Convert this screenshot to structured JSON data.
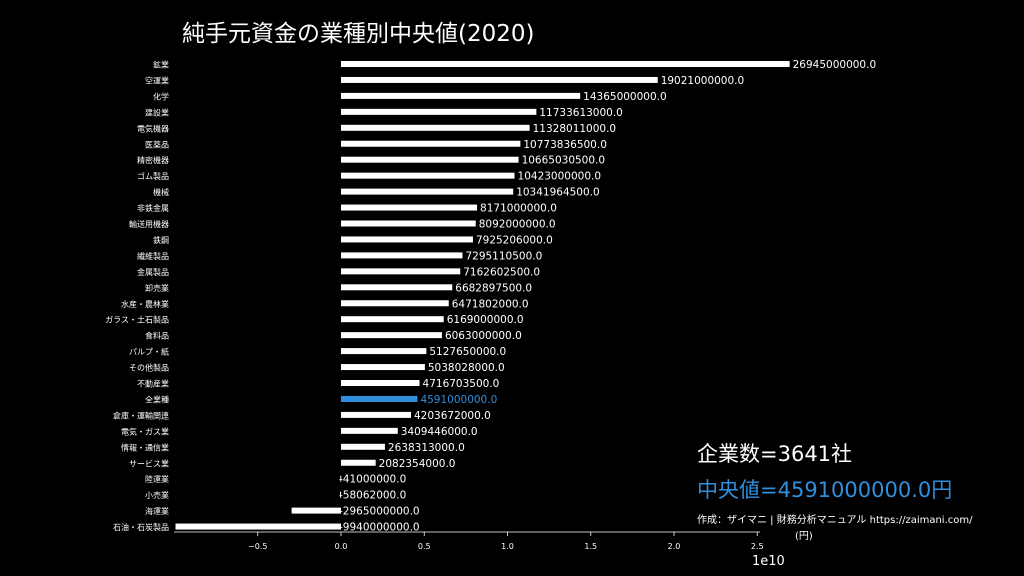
{
  "chart_data": {
    "type": "bar",
    "orientation": "horizontal",
    "title": "純手元資金の業種別中央値(2020)",
    "categories": [
      "鉱業",
      "空運業",
      "化学",
      "建設業",
      "電気機器",
      "医薬品",
      "精密機器",
      "ゴム製品",
      "機械",
      "非鉄金属",
      "輸送用機器",
      "鉄鋼",
      "繊維製品",
      "金属製品",
      "卸売業",
      "水産・農林業",
      "ガラス・土石製品",
      "食料品",
      "パルプ・紙",
      "その他製品",
      "不動産業",
      "全業種",
      "倉庫・運輸関連",
      "電気・ガス業",
      "情報・通信業",
      "サービス業",
      "陸運業",
      "小売業",
      "海運業",
      "石油・石炭製品"
    ],
    "values": [
      26945000000.0,
      19021000000.0,
      14365000000.0,
      11733613000.0,
      11328011000.0,
      10773836500.0,
      10665030500.0,
      10423000000.0,
      10341964500.0,
      8171000000.0,
      8092000000.0,
      7925206000.0,
      7295110500.0,
      7162602500.0,
      6682897500.0,
      6471802000.0,
      6169000000.0,
      6063000000.0,
      5127650000.0,
      5038028000.0,
      4716703500.0,
      4591000000.0,
      4203672000.0,
      3409446000.0,
      2638313000.0,
      2082354000.0,
      -41000000.0,
      -58062000.0,
      -2965000000.0,
      -9940000000.0
    ],
    "value_labels": [
      "26945000000.0",
      "19021000000.0",
      "14365000000.0",
      "11733613000.0",
      "11328011000.0",
      "10773836500.0",
      "10665030500.0",
      "10423000000.0",
      "10341964500.0",
      "8171000000.0",
      "8092000000.0",
      "7925206000.0",
      "7295110500.0",
      "7162602500.0",
      "6682897500.0",
      "6471802000.0",
      "6169000000.0",
      "6063000000.0",
      "5127650000.0",
      "5038028000.0",
      "4716703500.0",
      "4591000000.0",
      "4203672000.0",
      "3409446000.0",
      "2638313000.0",
      "2082354000.0",
      "-41000000.0",
      "-58062000.0",
      "-2965000000.0",
      "-9940000000.0"
    ],
    "highlight_category": "全業種",
    "x_ticks": [
      -0.5,
      0.0,
      0.5,
      1.0,
      1.5,
      2.0,
      2.5
    ],
    "x_tick_labels": [
      "−0.5",
      "0.0",
      "0.5",
      "1.0",
      "1.5",
      "2.0",
      "2.5"
    ],
    "x_scale_label": "1e10",
    "xlim": [
      -1.0,
      2.6
    ],
    "grid": false,
    "colors": {
      "background": "#000000",
      "bar": "#ffffff",
      "highlight": "#2f8fdc",
      "text": "#ffffff"
    }
  },
  "annotations": {
    "company_count": "企業数=3641社",
    "median": "中央値=4591000000.0円",
    "credit_line1": "作成：ザイマニ | 財務分析マニュアル https://zaimani.com/",
    "credit_line2": "(円)"
  }
}
